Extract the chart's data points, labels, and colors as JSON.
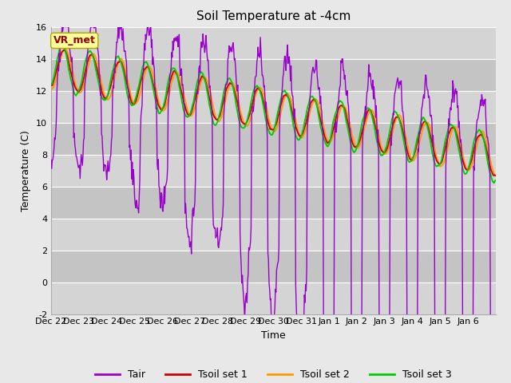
{
  "title": "Soil Temperature at -4cm",
  "xlabel": "Time",
  "ylabel": "Temperature (C)",
  "ylim": [
    -2,
    16
  ],
  "yticks": [
    -2,
    0,
    2,
    4,
    6,
    8,
    10,
    12,
    14,
    16
  ],
  "x_labels": [
    "Dec 22",
    "Dec 23",
    "Dec 24",
    "Dec 25",
    "Dec 26",
    "Dec 27",
    "Dec 28",
    "Dec 29",
    "Dec 30",
    "Dec 31",
    "Jan 1",
    "Jan 2",
    "Jan 3",
    "Jan 4",
    "Jan 5",
    "Jan 6"
  ],
  "bg_color": "#e8e8e8",
  "plot_bg_light": "#d8d8d8",
  "plot_bg_dark": "#c8c8c8",
  "line_colors": {
    "Tair": "#9900cc",
    "Tsoil1": "#cc0000",
    "Tsoil2": "#ff9900",
    "Tsoil3": "#00cc00"
  },
  "annotation_text": "VR_met",
  "annotation_color": "#990000",
  "annotation_bg": "#ffff99",
  "title_fontsize": 11,
  "axis_fontsize": 9,
  "tick_fontsize": 8,
  "legend_fontsize": 9,
  "grid_color": "#ffffff",
  "stripe_colors": [
    "#d8d8d8",
    "#c8c8c8"
  ]
}
